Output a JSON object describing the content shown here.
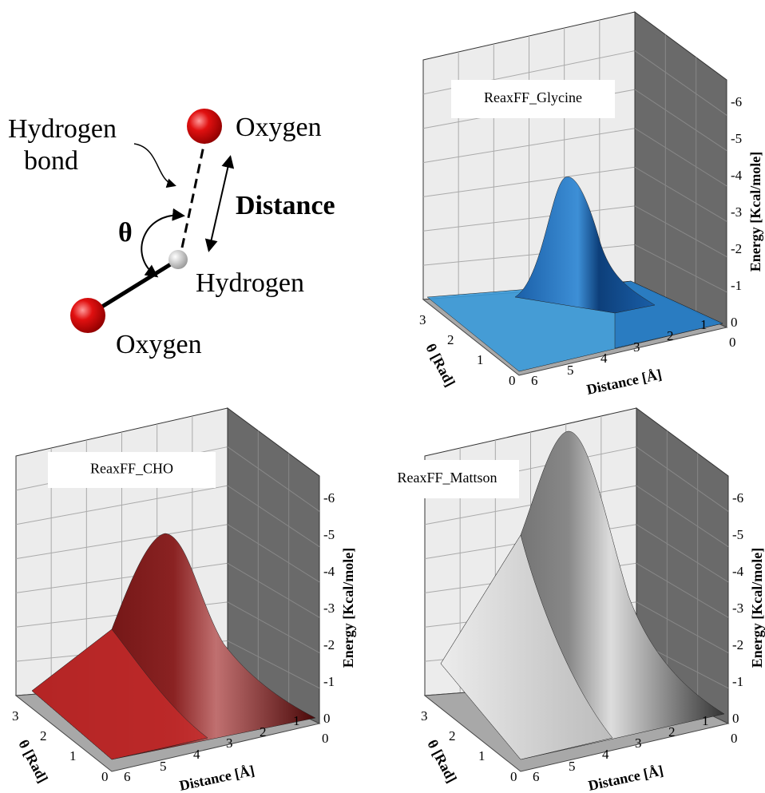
{
  "diagram": {
    "hydrogen_bond_line1": "Hydrogen",
    "hydrogen_bond_line2": "bond",
    "oxygen_top": "Oxygen",
    "distance": "Distance",
    "theta": "θ",
    "hydrogen": "Hydrogen",
    "oxygen_bottom": "Oxygen"
  },
  "panels": [
    {
      "title": "ReaxFF_Glycine",
      "energy_label": "Energy [Kcal/mole]",
      "energy_ticks": [
        0,
        -1,
        -2,
        -3,
        -4,
        -5,
        -6
      ],
      "theta_label": "θ [Rad]",
      "theta_ticks": [
        3,
        2,
        1,
        0
      ],
      "distance_label": "Distance [Å]",
      "distance_ticks": [
        6,
        5,
        4,
        3,
        2,
        1,
        0
      ]
    },
    {
      "title": "ReaxFF_CHO",
      "energy_label": "Energy [Kcal/mole]",
      "energy_ticks": [
        0,
        -1,
        -2,
        -3,
        -4,
        -5,
        -6
      ],
      "theta_label": "θ [Rad]",
      "theta_ticks": [
        3,
        2,
        1,
        0
      ],
      "distance_label": "Distance [Å]",
      "distance_ticks": [
        6,
        5,
        4,
        3,
        2,
        1,
        0
      ]
    },
    {
      "title": "ReaxFF_Mattson",
      "energy_label": "Energy [Kcal/mole]",
      "energy_ticks": [
        0,
        -1,
        -2,
        -3,
        -4,
        -5,
        -6
      ],
      "theta_label": "θ [Rad]",
      "theta_ticks": [
        3,
        2,
        1,
        0
      ],
      "distance_label": "Distance [Å]",
      "distance_ticks": [
        6,
        5,
        4,
        3,
        2,
        1,
        0
      ]
    }
  ]
}
